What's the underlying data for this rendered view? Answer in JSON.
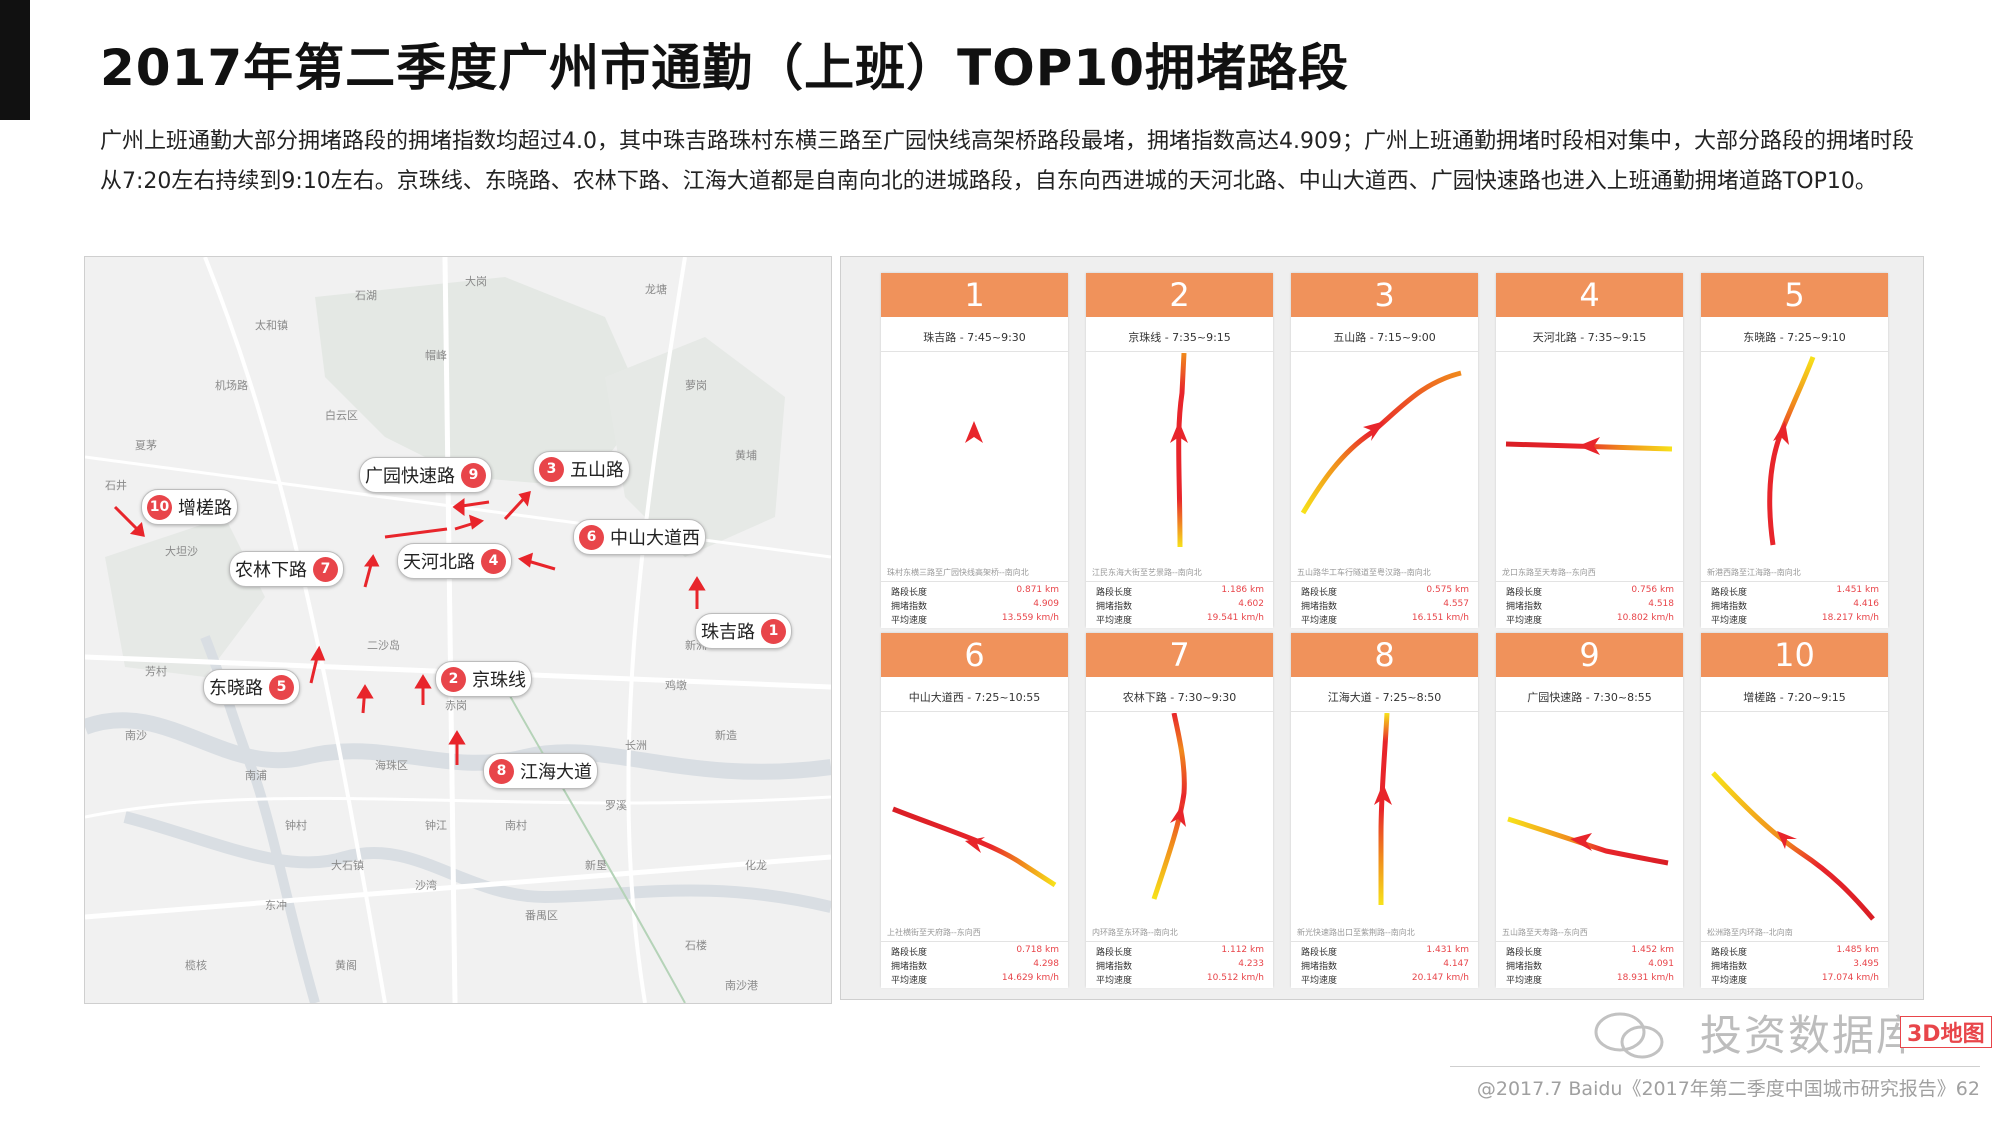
{
  "page": {
    "title": "2017年第二季度广州市通勤（上班）TOP10拥堵路段",
    "intro": "广州上班通勤大部分拥堵路段的拥堵指数均超过4.0，其中珠吉路珠村东横三路至广园快线高架桥路段最堵，拥堵指数高达4.909；广州上班通勤拥堵时段相对集中，大部分路段的拥堵时段从7:20左右持续到9:10左右。京珠线、东晓路、农林下路、江海大道都是自南向北的进城路段，自东向西进城的天河北路、中山大道西、广园快速路也进入上班通勤拥堵道路TOP10。"
  },
  "map": {
    "place_labels": [
      "大岗",
      "石湖",
      "龙塘",
      "太和镇",
      "帽峰",
      "机场路",
      "萝岗",
      "白云区",
      "黄埔",
      "夏茅",
      "石井",
      "大坦沙",
      "芳村",
      "南沙",
      "番禺区",
      "鸡墩",
      "新造",
      "罗溪",
      "化龙",
      "海珠区",
      "二沙岛",
      "赤岗",
      "南浦",
      "黄阁",
      "大石镇",
      "榄核",
      "东冲",
      "石楼",
      "钟村",
      "沙湾",
      "钟江",
      "新垦",
      "南村",
      "南沙港",
      "长洲",
      "新洲"
    ],
    "markers": [
      {
        "rank": "10",
        "label": "增槎路",
        "side": "left"
      },
      {
        "rank": "9",
        "label": "广园快速路",
        "side": "right"
      },
      {
        "rank": "3",
        "label": "五山路",
        "side": "left"
      },
      {
        "rank": "6",
        "label": "中山大道西",
        "side": "left"
      },
      {
        "rank": "7",
        "label": "农林下路",
        "side": "right"
      },
      {
        "rank": "4",
        "label": "天河北路",
        "side": "right"
      },
      {
        "rank": "1",
        "label": "珠吉路",
        "side": "right"
      },
      {
        "rank": "5",
        "label": "东晓路",
        "side": "right"
      },
      {
        "rank": "2",
        "label": "京珠线",
        "side": "left"
      },
      {
        "rank": "8",
        "label": "江海大道",
        "side": "left"
      }
    ]
  },
  "stats_labels": {
    "length": "路段长度",
    "index": "拥堵指数",
    "speed": "平均速度"
  },
  "cards": [
    {
      "rank": "1",
      "road": "珠吉路 - 7:45~9:30",
      "desc": "珠村东横三路至广园快线高架桥--南向北",
      "length": "0.871 km",
      "index": "4.909",
      "speed": "13.559 km/h"
    },
    {
      "rank": "2",
      "road": "京珠线 - 7:35~9:15",
      "desc": "江民东海大街至艺景路--南向北",
      "length": "1.186 km",
      "index": "4.602",
      "speed": "19.541 km/h"
    },
    {
      "rank": "3",
      "road": "五山路 - 7:15~9:00",
      "desc": "五山路华工车行隧道至粤汉路--南向北",
      "length": "0.575 km",
      "index": "4.557",
      "speed": "16.151 km/h"
    },
    {
      "rank": "4",
      "road": "天河北路 - 7:35~9:15",
      "desc": "龙口东路至天寿路--东向西",
      "length": "0.756 km",
      "index": "4.518",
      "speed": "10.802 km/h"
    },
    {
      "rank": "5",
      "road": "东晓路 - 7:25~9:10",
      "desc": "新港西路至江海路--南向北",
      "length": "1.451 km",
      "index": "4.416",
      "speed": "18.217 km/h"
    },
    {
      "rank": "6",
      "road": "中山大道西 - 7:25~10:55",
      "desc": "上社横街至天府路--东向西",
      "length": "0.718 km",
      "index": "4.298",
      "speed": "14.629 km/h"
    },
    {
      "rank": "7",
      "road": "农林下路 - 7:30~9:30",
      "desc": "内环路至东环路--南向北",
      "length": "1.112 km",
      "index": "4.233",
      "speed": "10.512 km/h"
    },
    {
      "rank": "8",
      "road": "江海大道 - 7:25~8:50",
      "desc": "新光快速路出口至紫荆路--南向北",
      "length": "1.431 km",
      "index": "4.147",
      "speed": "20.147 km/h"
    },
    {
      "rank": "9",
      "road": "广园快速路 - 7:30~8:55",
      "desc": "五山路至天寿路--东向西",
      "length": "1.452 km",
      "index": "4.091",
      "speed": "18.931 km/h"
    },
    {
      "rank": "10",
      "road": "增槎路 - 7:20~9:15",
      "desc": "松洲路至内环路--北向南",
      "length": "1.485 km",
      "index": "3.495",
      "speed": "17.074 km/h"
    }
  ],
  "watermark": {
    "text": "投资数据库",
    "badge": "3D地图"
  },
  "footer": "@2017.7 Baidu《2017年第二季度中国城市研究报告》62"
}
